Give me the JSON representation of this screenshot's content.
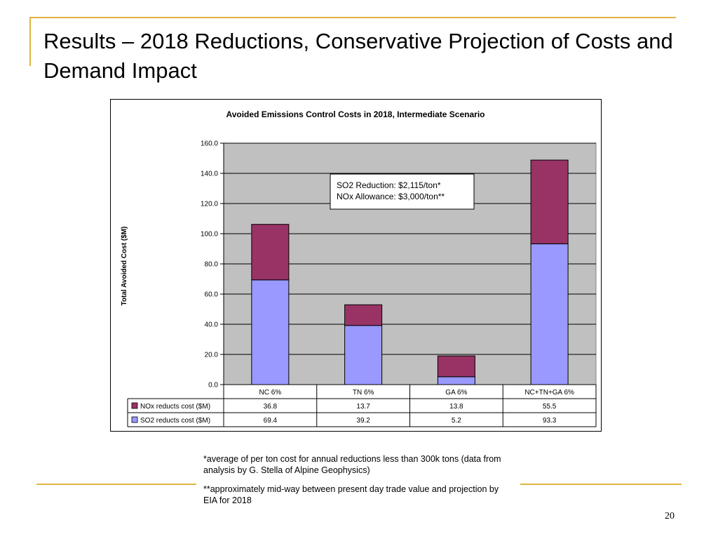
{
  "slide": {
    "title": "Results – 2018 Reductions, Conservative Projection of Costs and Demand Impact",
    "footnote_1": "*average of per ton cost for annual reductions less than 300k tons (data from analysis by G. Stella of Alpine Geophysics)",
    "footnote_2": "**approximately mid-way between present day trade value and projection by EIA for 2018",
    "page_number": "20"
  },
  "colors": {
    "accent_rule": "#e0b440",
    "plot_bg": "#c0c0c0",
    "so2": "#9999ff",
    "nox": "#993366"
  },
  "chart_data": {
    "type": "bar",
    "stacked": true,
    "title": "Avoided Emissions Control Costs in 2018, Intermediate Scenario",
    "ylabel": "Total Avoided Cost ($M)",
    "xlabel": "",
    "ylim": [
      0,
      160
    ],
    "yticks": [
      "0.0",
      "20.0",
      "40.0",
      "60.0",
      "80.0",
      "100.0",
      "120.0",
      "140.0",
      "160.0"
    ],
    "grid": true,
    "categories": [
      "NC 6%",
      "TN 6%",
      "GA 6%",
      "NC+TN+GA 6%"
    ],
    "series": [
      {
        "name": "SO2 reducts cost ($M)",
        "color": "#9999ff",
        "values": [
          69.4,
          39.2,
          5.2,
          93.3
        ],
        "labels": [
          "69.4",
          "39.2",
          "5.2",
          "93.3"
        ]
      },
      {
        "name": "NOx reducts cost ($M)",
        "color": "#993366",
        "values": [
          36.8,
          13.7,
          13.8,
          55.5
        ],
        "labels": [
          "36.8",
          "13.7",
          "13.8",
          "55.5"
        ]
      }
    ],
    "annotation": {
      "line1": "SO2 Reduction: $2,115/ton*",
      "line2": "NOx Allowance: $3,000/ton**"
    },
    "data_table": true
  }
}
